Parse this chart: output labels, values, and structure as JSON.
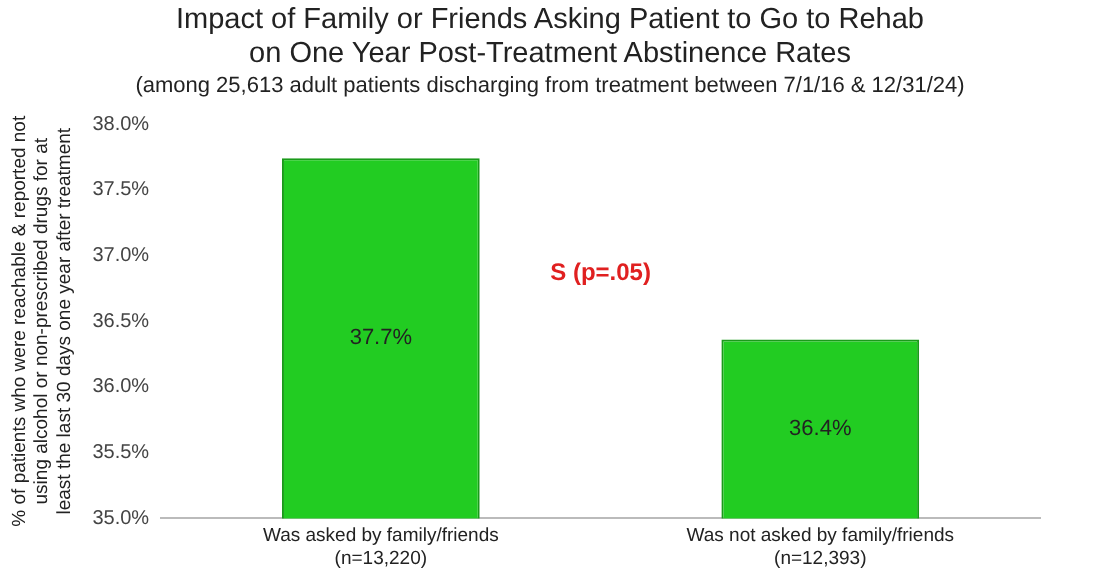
{
  "chart_data": {
    "type": "bar",
    "title": "Impact of Family or Friends Asking Patient to Go to Rehab on One Year Post-Treatment Abstinence Rates",
    "subtitle": "(among 25,613 adult patients discharging from treatment between 7/1/16 & 12/31/24)",
    "ylabel": "% of patients who were reachable & reported not using alcohol or non-prescribed drugs for at least the last 30 days one year after treatment",
    "categories": [
      "Was asked by family/friends\n(n=13,220)",
      "Was not asked by family/friends\n(n=12,393)"
    ],
    "values": [
      37.74,
      36.36
    ],
    "value_labels": [
      "37.7%",
      "36.4%"
    ],
    "color": "#22cc22",
    "ylim": [
      35.0,
      38.0
    ],
    "yticks": [
      {
        "value": 35.0,
        "label": "35.0%"
      },
      {
        "value": 35.5,
        "label": "35.5%"
      },
      {
        "value": 36.0,
        "label": "36.0%"
      },
      {
        "value": 36.5,
        "label": "36.5%"
      },
      {
        "value": 37.0,
        "label": "37.0%"
      },
      {
        "value": 37.5,
        "label": "37.5%"
      },
      {
        "value": 38.0,
        "label": "38.0%"
      }
    ],
    "annotations": [
      "S (p=.05)"
    ],
    "grid": false,
    "legend": false
  }
}
